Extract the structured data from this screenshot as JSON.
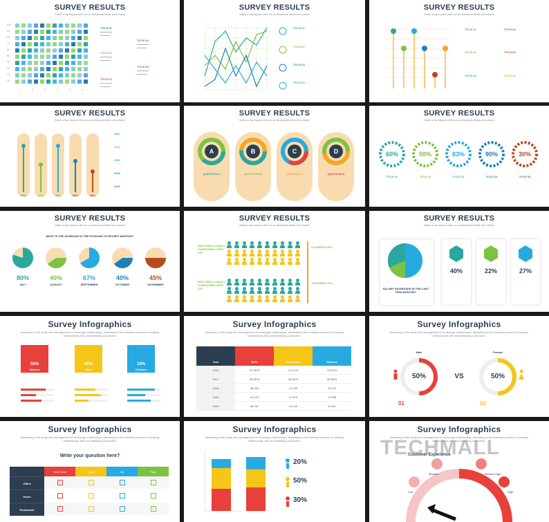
{
  "titles": {
    "survey": "SURVEY RESULTS",
    "infographics": "Survey Infographics",
    "subtitle": "Make a big impact with our professional slides and charts",
    "long_subtitle": "Marketing is the study and management of exchange relationships. Marketing is the business process of creating relationships with and satisfying customers."
  },
  "slide1": {
    "titles": [
      "TITLE 01",
      "TITLE 02",
      "TITLE 03",
      "TITLE 04",
      "TITLE 05"
    ],
    "yticks": [
      "100",
      "90",
      "80",
      "70",
      "60",
      "50",
      "40",
      "30",
      "20",
      "10"
    ],
    "xticks": [
      "1",
      "2",
      "3",
      "4",
      "5",
      "6"
    ]
  },
  "slide2": {
    "titles": [
      "TITLE 01",
      "TITLE 02",
      "TITLE 03",
      "TITLE 04"
    ]
  },
  "slide3": {
    "titles": [
      "TITLE 01",
      "TITLE 02",
      "TITLE 03",
      "TITLE 04",
      "TITLE 05",
      "TITLE 06"
    ]
  },
  "slide4": {
    "years": [
      "2017",
      "2018",
      "2019",
      "2020",
      "2021"
    ],
    "pcts": [
      "90%",
      "40%",
      "75%",
      "60%",
      "40%"
    ]
  },
  "slide5": {
    "letters": [
      "A",
      "B",
      "C",
      "D"
    ],
    "questions": [
      "QUESTION A",
      "QUESTION B",
      "QUESTION C",
      "QUESTION D"
    ]
  },
  "slide6": {
    "pcts": [
      "60%",
      "50%",
      "83%",
      "90%",
      "30%"
    ],
    "titles": [
      "TITLE 01",
      "TITLE 02",
      "TITLE 03",
      "TITLE 04",
      "TITLE 05"
    ]
  },
  "slide7": {
    "question": "WHAT IS THE INCREASE IN THE ECONOMY IN RECENT MONTHS?",
    "pcts": [
      "80%",
      "40%",
      "67%",
      "40%",
      "45%"
    ],
    "months": [
      "JULY",
      "AUGUST",
      "SEPTEMBER",
      "OCTOBER",
      "NOVEMBER"
    ]
  },
  "slide8": {
    "q1": "WHO FEELS HIGHLY COMPATIBLE WITH US?",
    "q2": "WHO FEELS HIGHLY COMPATIBLE WITH US?",
    "r1": "STUDENTS 50%",
    "r2": "TEACHERS 70%"
  },
  "slide9": {
    "caption": "SALARY INCREASES IN THE LAST FEW MONTHS?",
    "pcts": [
      "40%",
      "22%",
      "27%"
    ]
  },
  "slide10": {
    "labels": [
      "Women",
      "Man",
      "Children"
    ],
    "pcts": [
      "50%",
      "40%",
      "10%"
    ]
  },
  "slide11": {
    "headers": [
      "Year",
      "Sells",
      "Production",
      "Returns"
    ],
    "rows": [
      [
        "2016",
        "51.9675",
        "11.2478",
        "13.8476"
      ],
      [
        "2017",
        "28.5675",
        "33.8475",
        "28.5675"
      ],
      [
        "2018",
        "38.945",
        "12.345",
        "13.476"
      ],
      [
        "2019",
        "31.075",
        "12.579",
        "17.598"
      ],
      [
        "2020",
        "38.767",
        "11.245",
        "12.567"
      ]
    ]
  },
  "slide12": {
    "male": "Male",
    "female": "Female",
    "male_pct": "50%",
    "female_pct": "50%",
    "vs": "VS",
    "num1": "01",
    "num2": "02"
  },
  "slide13": {
    "question": "Write your question here?",
    "columns": [
      "Very Good",
      "Good",
      "Ok",
      "Poor"
    ],
    "rows": [
      "Office",
      "Home",
      "Restaurant"
    ]
  },
  "slide14": {
    "pcts": [
      "20%",
      "50%",
      "30%"
    ]
  },
  "slide15": {
    "heading": "Customer Experience",
    "levels": [
      "Medium",
      "Medium High",
      "Low",
      "High"
    ],
    "watermark": "TECHMALL"
  },
  "colors": {
    "blue": "#1e7fb8",
    "green": "#7dc242",
    "teal": "#2aa8a0",
    "orange": "#f5a623",
    "red": "#e8403a",
    "navy": "#2c3e50",
    "cyan": "#27aae1",
    "peach": "#f8dcb0"
  }
}
